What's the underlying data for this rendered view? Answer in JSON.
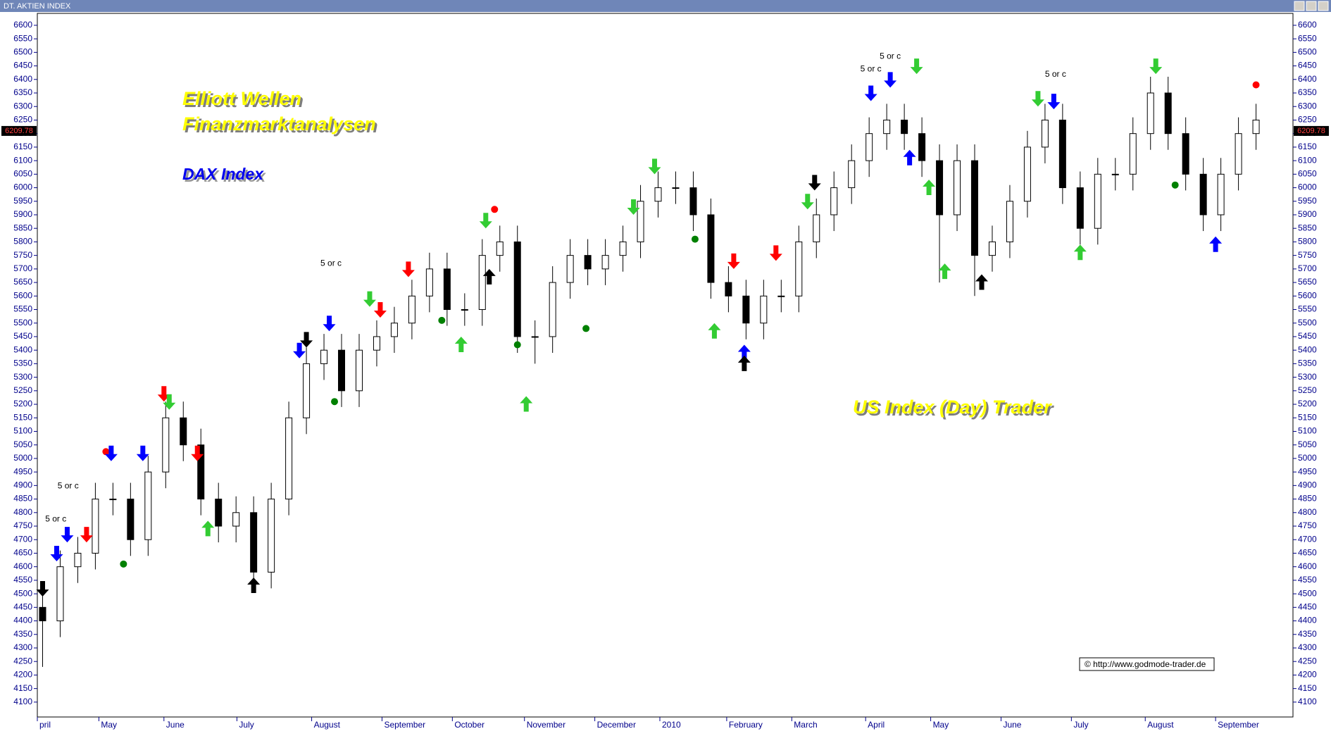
{
  "window_title": "DT. AKTIEN INDEX",
  "chart_data": {
    "type": "candlestick",
    "texts": [
      "Elliott Wellen",
      "Finanzmarktanalysen",
      "DAX Index",
      "US Index (Day) Trader"
    ],
    "copyright": "© http://www.godmode-trader.de",
    "last_price": 6209.78,
    "xlim": [
      -0.3,
      71.1
    ],
    "ylim": [
      4045,
      6644
    ],
    "yticks": [
      4100,
      4150,
      4200,
      4250,
      4300,
      4350,
      4400,
      4450,
      4500,
      4550,
      4600,
      4650,
      4700,
      4750,
      4800,
      4850,
      4900,
      4950,
      5000,
      5050,
      5100,
      5150,
      5200,
      5250,
      5300,
      5350,
      5400,
      5450,
      5500,
      5550,
      5600,
      5650,
      5700,
      5750,
      5800,
      5850,
      5900,
      5950,
      6000,
      6050,
      6100,
      6150,
      6200,
      6250,
      6300,
      6350,
      6400,
      6450,
      6500,
      6550,
      6600
    ],
    "xticks": [
      {
        "value": -0.3,
        "label": "pril"
      },
      {
        "value": 3.2,
        "label": "May"
      },
      {
        "value": 6.9,
        "label": "June"
      },
      {
        "value": 11.05,
        "label": "July"
      },
      {
        "value": 15.3,
        "label": "August"
      },
      {
        "value": 19.3,
        "label": "September"
      },
      {
        "value": 23.3,
        "label": "October"
      },
      {
        "value": 27.4,
        "label": "November"
      },
      {
        "value": 31.4,
        "label": "December"
      },
      {
        "value": 35.1,
        "label": "2010"
      },
      {
        "value": 38.9,
        "label": "February"
      },
      {
        "value": 42.6,
        "label": "March"
      },
      {
        "value": 46.8,
        "label": "April"
      },
      {
        "value": 50.5,
        "label": "May"
      },
      {
        "value": 54.5,
        "label": "June"
      },
      {
        "value": 58.5,
        "label": "July"
      },
      {
        "value": 62.7,
        "label": "August"
      },
      {
        "value": 66.7,
        "label": "September"
      }
    ],
    "open": [
      4450,
      4400,
      4600,
      4650,
      4850,
      4850,
      4700,
      4950,
      5150,
      5050,
      4850,
      4750,
      4800,
      4580,
      4850,
      5150,
      5350,
      5400,
      5250,
      5400,
      5450,
      5500,
      5600,
      5700,
      5550,
      5550,
      5750,
      5800,
      5450,
      5450,
      5650,
      5750,
      5700,
      5750,
      5800,
      5950,
      6000,
      6000,
      5900,
      5650,
      5600,
      5500,
      5600,
      5600,
      5800,
      5900,
      6000,
      6100,
      6200,
      6250,
      6200,
      6100,
      5900,
      6100,
      5750,
      5800,
      5950,
      6150,
      6250,
      6000,
      5850,
      6050,
      6050,
      6200,
      6350,
      6200,
      6050,
      5900,
      6050,
      6200
    ],
    "high": [
      4510,
      4660,
      4710,
      4910,
      4910,
      4910,
      5010,
      5210,
      5210,
      5110,
      4910,
      4860,
      4860,
      4910,
      5210,
      5410,
      5460,
      5460,
      5460,
      5510,
      5560,
      5660,
      5760,
      5760,
      5610,
      5810,
      5860,
      5860,
      5510,
      5710,
      5810,
      5810,
      5810,
      5860,
      6010,
      6060,
      6060,
      6060,
      5960,
      5710,
      5660,
      5660,
      5660,
      5860,
      5960,
      6060,
      6160,
      6260,
      6310,
      6310,
      6260,
      6160,
      6160,
      6160,
      5860,
      6010,
      6210,
      6310,
      6310,
      6060,
      6110,
      6110,
      6260,
      6410,
      6410,
      6260,
      6110,
      6110,
      6260,
      6310
    ],
    "low": [
      4230,
      4340,
      4540,
      4590,
      4790,
      4640,
      4640,
      4890,
      4990,
      4790,
      4690,
      4690,
      4520,
      4520,
      4790,
      5090,
      5290,
      5190,
      5190,
      5340,
      5390,
      5440,
      5540,
      5490,
      5490,
      5490,
      5690,
      5390,
      5350,
      5390,
      5590,
      5640,
      5640,
      5690,
      5740,
      5890,
      5940,
      5840,
      5590,
      5540,
      5440,
      5440,
      5540,
      5540,
      5740,
      5840,
      5940,
      6040,
      6140,
      6140,
      6040,
      5650,
      5840,
      5600,
      5690,
      5740,
      5890,
      6090,
      5940,
      5790,
      5790,
      5990,
      5990,
      6140,
      6140,
      5990,
      5840,
      5840,
      5990,
      6140
    ],
    "close": [
      4400,
      4600,
      4650,
      4850,
      4850,
      4700,
      4950,
      5150,
      5050,
      4850,
      4750,
      4800,
      4580,
      4850,
      5150,
      5350,
      5400,
      5250,
      5400,
      5450,
      5500,
      5600,
      5700,
      5550,
      5550,
      5750,
      5800,
      5450,
      5450,
      5650,
      5750,
      5700,
      5750,
      5800,
      5950,
      6000,
      6000,
      5900,
      5650,
      5600,
      5500,
      5600,
      5600,
      5800,
      5900,
      6000,
      6100,
      6200,
      6250,
      6200,
      6100,
      5900,
      6100,
      5750,
      5800,
      5950,
      6150,
      6250,
      6000,
      5850,
      6050,
      6050,
      6200,
      6350,
      6200,
      6050,
      5900,
      6050,
      6200,
      6250
    ],
    "signals": [
      {
        "x": 0,
        "y": 4490,
        "shape": "arrow-down",
        "color": "#000000"
      },
      {
        "x": 0.8,
        "y": 4620,
        "shape": "arrow-down",
        "color": "#0000ff"
      },
      {
        "x": 1.4,
        "y": 4690,
        "shape": "arrow-down",
        "color": "#0000ff"
      },
      {
        "x": 2.5,
        "y": 4690,
        "shape": "arrow-down",
        "color": "#ff0000"
      },
      {
        "x": 3.6,
        "y": 5025,
        "shape": "dot",
        "color": "#ff0000"
      },
      {
        "x": 3.9,
        "y": 4990,
        "shape": "arrow-down",
        "color": "#0000ff"
      },
      {
        "x": 4.6,
        "y": 4610,
        "shape": "dot",
        "color": "#008000"
      },
      {
        "x": 5.7,
        "y": 4990,
        "shape": "arrow-down",
        "color": "#0000ff"
      },
      {
        "x": 6.9,
        "y": 5210,
        "shape": "arrow-down",
        "color": "#ff0000"
      },
      {
        "x": 7.2,
        "y": 5180,
        "shape": "arrow-down",
        "color": "#33cc33"
      },
      {
        "x": 8.8,
        "y": 4990,
        "shape": "arrow-down",
        "color": "#ff0000"
      },
      {
        "x": 9.4,
        "y": 4770,
        "shape": "arrow-up",
        "color": "#33cc33"
      },
      {
        "x": 12,
        "y": 4560,
        "shape": "arrow-up",
        "color": "#000000"
      },
      {
        "x": 14.6,
        "y": 5370,
        "shape": "arrow-down",
        "color": "#0000ff"
      },
      {
        "x": 15,
        "y": 5410,
        "shape": "arrow-down",
        "color": "#000000"
      },
      {
        "x": 16.3,
        "y": 5470,
        "shape": "arrow-down",
        "color": "#0000ff"
      },
      {
        "x": 16.6,
        "y": 5210,
        "shape": "dot",
        "color": "#008000"
      },
      {
        "x": 18.6,
        "y": 5560,
        "shape": "arrow-down",
        "color": "#33cc33"
      },
      {
        "x": 19.2,
        "y": 5520,
        "shape": "arrow-down",
        "color": "#ff0000"
      },
      {
        "x": 20.8,
        "y": 5670,
        "shape": "arrow-down",
        "color": "#ff0000"
      },
      {
        "x": 22.7,
        "y": 5510,
        "shape": "dot",
        "color": "#008000"
      },
      {
        "x": 23.8,
        "y": 5450,
        "shape": "arrow-up",
        "color": "#33cc33"
      },
      {
        "x": 25.2,
        "y": 5850,
        "shape": "arrow-down",
        "color": "#33cc33"
      },
      {
        "x": 25.7,
        "y": 5920,
        "shape": "dot",
        "color": "#ff0000"
      },
      {
        "x": 25.4,
        "y": 5700,
        "shape": "arrow-up",
        "color": "#000000"
      },
      {
        "x": 27,
        "y": 5420,
        "shape": "dot",
        "color": "#008000"
      },
      {
        "x": 27.5,
        "y": 5230,
        "shape": "arrow-up",
        "color": "#33cc33"
      },
      {
        "x": 30.9,
        "y": 5480,
        "shape": "dot",
        "color": "#008000"
      },
      {
        "x": 33.6,
        "y": 5900,
        "shape": "arrow-down",
        "color": "#33cc33"
      },
      {
        "x": 34.8,
        "y": 6050,
        "shape": "arrow-down",
        "color": "#33cc33"
      },
      {
        "x": 37.1,
        "y": 5810,
        "shape": "dot",
        "color": "#008000"
      },
      {
        "x": 38.2,
        "y": 5500,
        "shape": "arrow-up",
        "color": "#33cc33"
      },
      {
        "x": 39.3,
        "y": 5700,
        "shape": "arrow-down",
        "color": "#ff0000"
      },
      {
        "x": 39.9,
        "y": 5420,
        "shape": "arrow-up",
        "color": "#0000ff"
      },
      {
        "x": 39.9,
        "y": 5380,
        "shape": "arrow-up",
        "color": "#000000"
      },
      {
        "x": 41.7,
        "y": 5730,
        "shape": "arrow-down",
        "color": "#ff0000"
      },
      {
        "x": 43.5,
        "y": 5920,
        "shape": "arrow-down",
        "color": "#33cc33"
      },
      {
        "x": 43.9,
        "y": 5990,
        "shape": "arrow-down",
        "color": "#000000"
      },
      {
        "x": 47.1,
        "y": 6320,
        "shape": "arrow-down",
        "color": "#0000ff"
      },
      {
        "x": 48.2,
        "y": 6370,
        "shape": "arrow-down",
        "color": "#0000ff"
      },
      {
        "x": 49.7,
        "y": 6420,
        "shape": "arrow-down",
        "color": "#33cc33"
      },
      {
        "x": 49.3,
        "y": 6140,
        "shape": "arrow-up",
        "color": "#0000ff"
      },
      {
        "x": 50.4,
        "y": 6030,
        "shape": "arrow-up",
        "color": "#33cc33"
      },
      {
        "x": 51.3,
        "y": 5720,
        "shape": "arrow-up",
        "color": "#33cc33"
      },
      {
        "x": 53.4,
        "y": 5680,
        "shape": "arrow-up",
        "color": "#000000"
      },
      {
        "x": 56.6,
        "y": 6300,
        "shape": "arrow-down",
        "color": "#33cc33"
      },
      {
        "x": 57.5,
        "y": 6290,
        "shape": "arrow-down",
        "color": "#0000ff"
      },
      {
        "x": 59,
        "y": 5790,
        "shape": "arrow-up",
        "color": "#33cc33"
      },
      {
        "x": 63.3,
        "y": 6420,
        "shape": "arrow-down",
        "color": "#33cc33"
      },
      {
        "x": 64.4,
        "y": 6010,
        "shape": "dot",
        "color": "#008000"
      },
      {
        "x": 66.7,
        "y": 5820,
        "shape": "arrow-up",
        "color": "#0000ff"
      },
      {
        "x": 69,
        "y": 6380,
        "shape": "dot",
        "color": "#ff0000"
      }
    ],
    "annotations": [
      {
        "text": "5 or c",
        "x": 0.75,
        "y": 4775
      },
      {
        "text": "5 or c",
        "x": 1.45,
        "y": 4897
      },
      {
        "text": "5 or c",
        "x": 16.4,
        "y": 5719
      },
      {
        "text": "5 or c",
        "x": 47.1,
        "y": 6437
      },
      {
        "text": "5 or c",
        "x": 48.2,
        "y": 6484
      },
      {
        "text": "5 or c",
        "x": 57.6,
        "y": 6418
      }
    ]
  }
}
